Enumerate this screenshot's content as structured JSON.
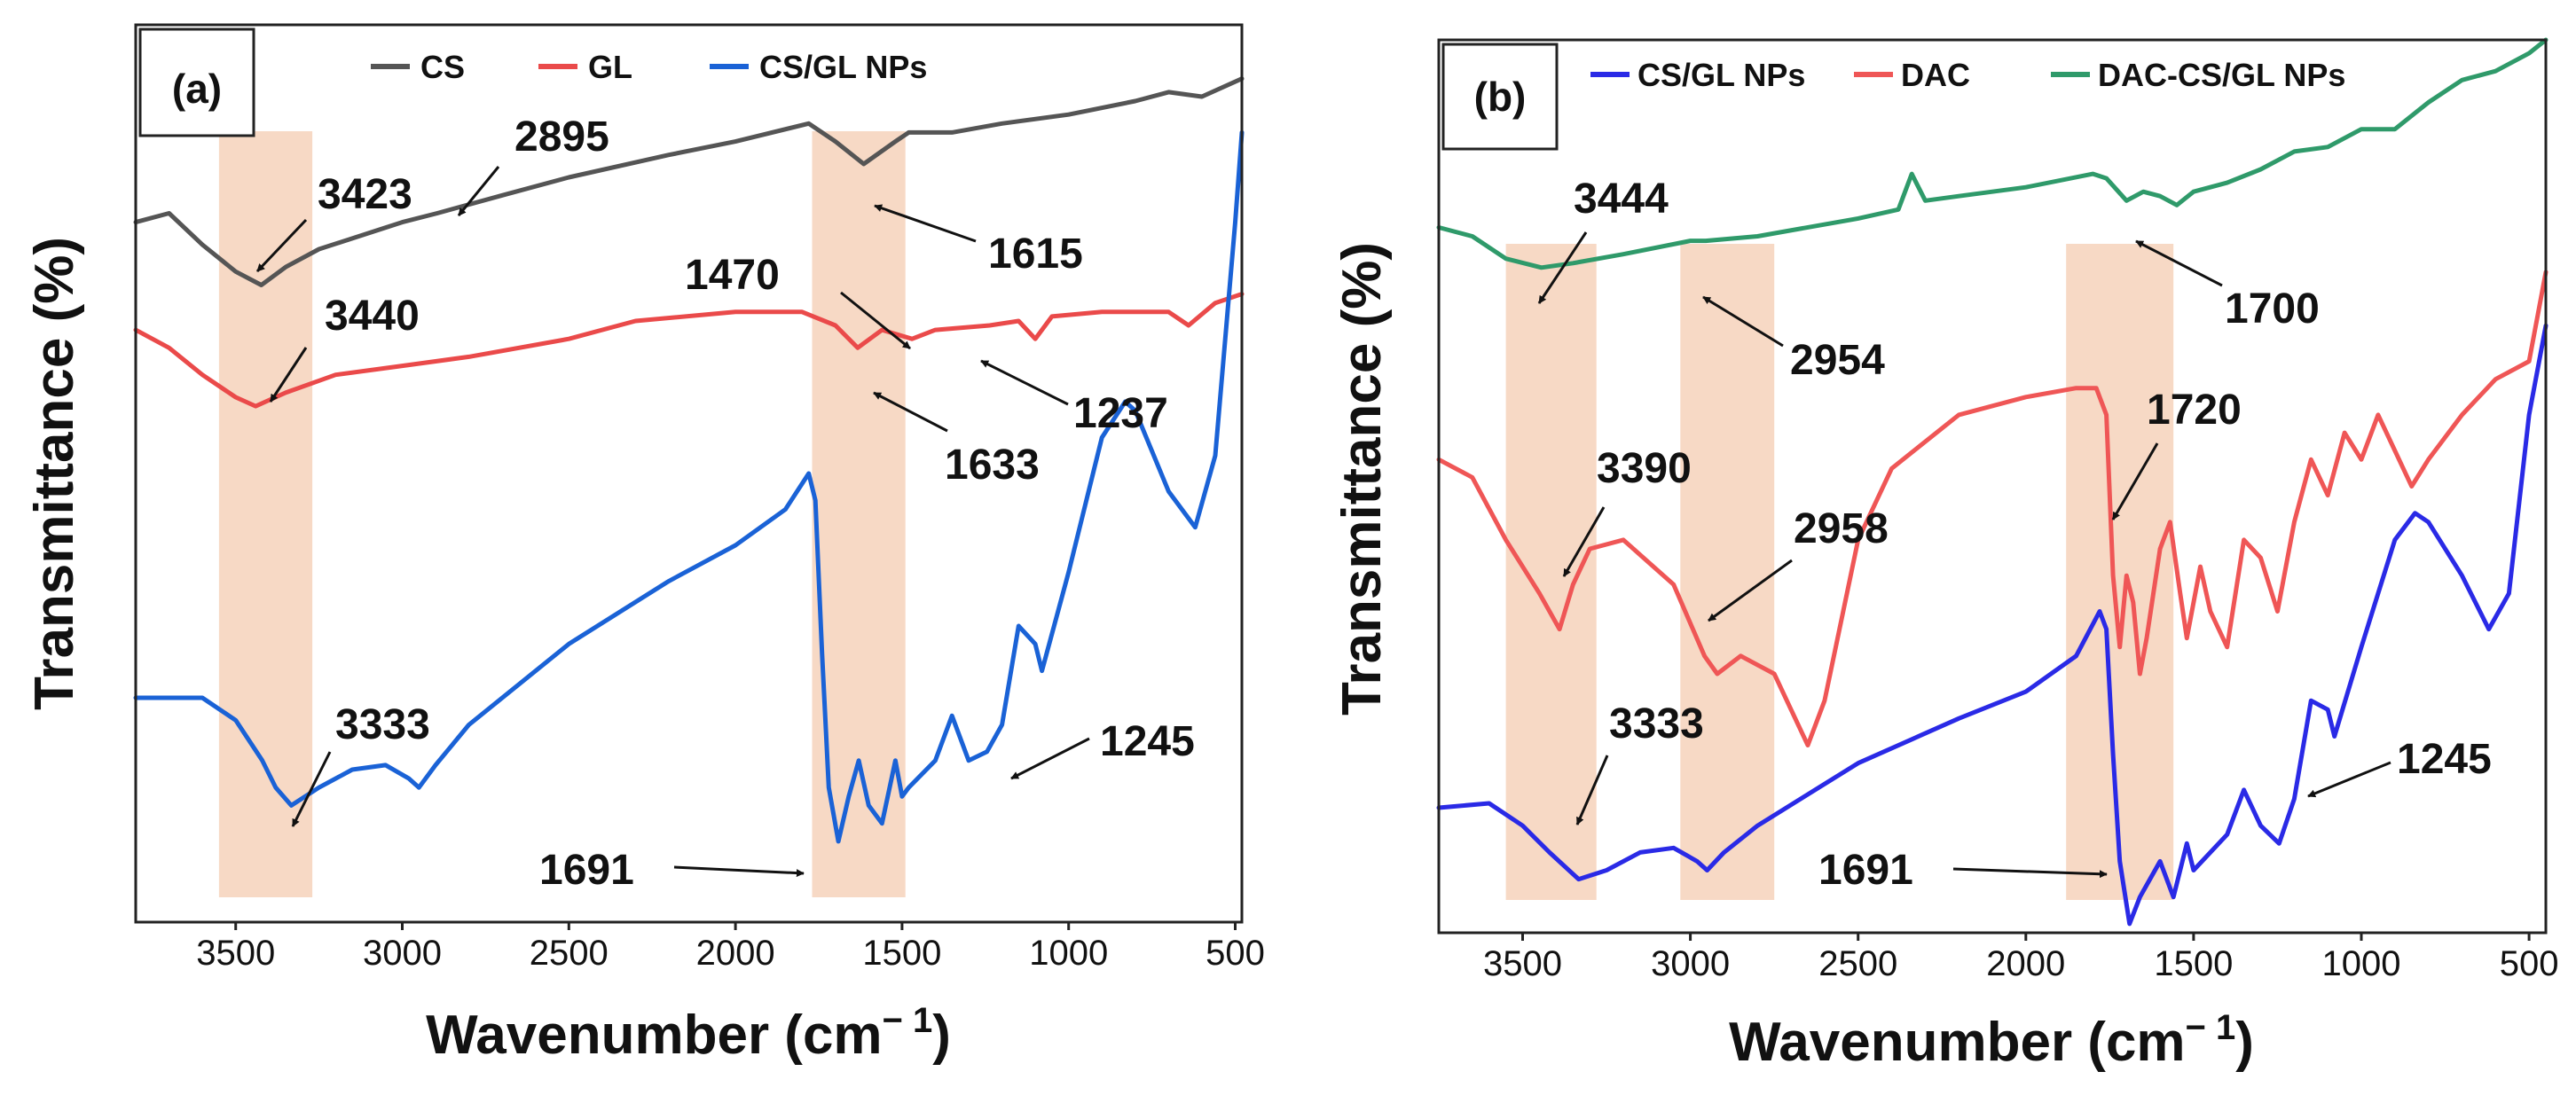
{
  "chart_data": [
    {
      "type": "line",
      "panel_label": "(a)",
      "xlabel_main": "Wavenumber (cm",
      "xlabel_sup": "− 1",
      "xlabel_close": ")",
      "ylabel": "Transmittance (%)",
      "xlim": [
        3800,
        480
      ],
      "ylim": [
        0,
        100
      ],
      "yticks_shown": false,
      "xticks": [
        3500,
        3000,
        2500,
        2000,
        1500,
        1000,
        500
      ],
      "highlight_bands": [
        [
          3550,
          3270
        ],
        [
          1770,
          1490
        ]
      ],
      "series": [
        {
          "name": "CS",
          "color": "#555555",
          "points": [
            [
              3800,
              78
            ],
            [
              3700,
              79
            ],
            [
              3600,
              75.5
            ],
            [
              3500,
              72.5
            ],
            [
              3423,
              71
            ],
            [
              3350,
              73
            ],
            [
              3250,
              75
            ],
            [
              3000,
              78
            ],
            [
              2895,
              79
            ],
            [
              2700,
              81
            ],
            [
              2500,
              83
            ],
            [
              2200,
              85.5
            ],
            [
              2000,
              87
            ],
            [
              1780,
              89
            ],
            [
              1700,
              87
            ],
            [
              1615,
              84.5
            ],
            [
              1520,
              87
            ],
            [
              1480,
              88
            ],
            [
              1350,
              88
            ],
            [
              1200,
              89
            ],
            [
              1000,
              90
            ],
            [
              800,
              91.5
            ],
            [
              700,
              92.5
            ],
            [
              600,
              92
            ],
            [
              480,
              94
            ]
          ]
        },
        {
          "name": "GL",
          "color": "#ea4a4a",
          "points": [
            [
              3800,
              66
            ],
            [
              3700,
              64
            ],
            [
              3600,
              61
            ],
            [
              3500,
              58.5
            ],
            [
              3440,
              57.5
            ],
            [
              3350,
              59
            ],
            [
              3200,
              61
            ],
            [
              3000,
              62
            ],
            [
              2800,
              63
            ],
            [
              2500,
              65
            ],
            [
              2300,
              67
            ],
            [
              2000,
              68
            ],
            [
              1800,
              68
            ],
            [
              1700,
              66.5
            ],
            [
              1633,
              64
            ],
            [
              1560,
              66
            ],
            [
              1470,
              65
            ],
            [
              1400,
              66
            ],
            [
              1237,
              66.5
            ],
            [
              1150,
              67
            ],
            [
              1100,
              65
            ],
            [
              1050,
              67.5
            ],
            [
              900,
              68
            ],
            [
              700,
              68
            ],
            [
              640,
              66.5
            ],
            [
              560,
              69
            ],
            [
              480,
              70
            ]
          ]
        },
        {
          "name": "CS/GL NPs",
          "color": "#1a62d6",
          "points": [
            [
              3800,
              25
            ],
            [
              3600,
              25
            ],
            [
              3500,
              22.5
            ],
            [
              3420,
              18
            ],
            [
              3380,
              15
            ],
            [
              3333,
              13
            ],
            [
              3250,
              15
            ],
            [
              3150,
              17
            ],
            [
              3050,
              17.5
            ],
            [
              2980,
              16
            ],
            [
              2950,
              15
            ],
            [
              2900,
              17.5
            ],
            [
              2800,
              22
            ],
            [
              2500,
              31
            ],
            [
              2200,
              38
            ],
            [
              2000,
              42
            ],
            [
              1850,
              46
            ],
            [
              1780,
              50
            ],
            [
              1760,
              47
            ],
            [
              1740,
              30
            ],
            [
              1720,
              15
            ],
            [
              1691,
              9
            ],
            [
              1660,
              14
            ],
            [
              1630,
              18
            ],
            [
              1600,
              13
            ],
            [
              1560,
              11
            ],
            [
              1520,
              18
            ],
            [
              1500,
              14
            ],
            [
              1480,
              15
            ],
            [
              1400,
              18
            ],
            [
              1350,
              23
            ],
            [
              1300,
              18
            ],
            [
              1245,
              19
            ],
            [
              1200,
              22
            ],
            [
              1150,
              33
            ],
            [
              1100,
              31
            ],
            [
              1080,
              28
            ],
            [
              1000,
              39
            ],
            [
              900,
              54
            ],
            [
              830,
              58
            ],
            [
              800,
              57
            ],
            [
              700,
              48
            ],
            [
              620,
              44
            ],
            [
              560,
              52
            ],
            [
              500,
              78
            ],
            [
              480,
              88
            ]
          ]
        }
      ],
      "annotations": [
        "2895",
        "3423",
        "3440",
        "1615",
        "1470",
        "1237",
        "1633",
        "3333",
        "1245",
        "1691"
      ]
    },
    {
      "type": "line",
      "panel_label": "(b)",
      "xlabel_main": "Wavenumber (cm",
      "xlabel_sup": "− 1",
      "xlabel_close": ")",
      "ylabel": "Transmittance (%)",
      "xlim": [
        3750,
        450
      ],
      "ylim": [
        0,
        100
      ],
      "yticks_shown": false,
      "xticks": [
        3500,
        3000,
        2500,
        2000,
        1500,
        1000,
        500
      ],
      "highlight_bands": [
        [
          3550,
          3280
        ],
        [
          3030,
          2750
        ],
        [
          1880,
          1560
        ]
      ],
      "series": [
        {
          "name": "CS/GL NPs",
          "color": "#2a2ae6",
          "points": [
            [
              3750,
              14
            ],
            [
              3600,
              14.5
            ],
            [
              3500,
              12
            ],
            [
              3420,
              9
            ],
            [
              3333,
              6
            ],
            [
              3250,
              7
            ],
            [
              3150,
              9
            ],
            [
              3050,
              9.5
            ],
            [
              2980,
              8
            ],
            [
              2950,
              7
            ],
            [
              2900,
              9
            ],
            [
              2800,
              12
            ],
            [
              2500,
              19
            ],
            [
              2200,
              24
            ],
            [
              2000,
              27
            ],
            [
              1850,
              31
            ],
            [
              1780,
              36
            ],
            [
              1760,
              34
            ],
            [
              1740,
              20
            ],
            [
              1720,
              8
            ],
            [
              1691,
              1
            ],
            [
              1660,
              4
            ],
            [
              1630,
              6
            ],
            [
              1600,
              8
            ],
            [
              1560,
              4
            ],
            [
              1520,
              10
            ],
            [
              1500,
              7
            ],
            [
              1400,
              11
            ],
            [
              1350,
              16
            ],
            [
              1300,
              12
            ],
            [
              1245,
              10
            ],
            [
              1200,
              15
            ],
            [
              1150,
              26
            ],
            [
              1100,
              25
            ],
            [
              1080,
              22
            ],
            [
              1000,
              32
            ],
            [
              900,
              44
            ],
            [
              840,
              47
            ],
            [
              800,
              46
            ],
            [
              700,
              40
            ],
            [
              620,
              34
            ],
            [
              560,
              38
            ],
            [
              500,
              58
            ],
            [
              450,
              68
            ]
          ]
        },
        {
          "name": "DAC",
          "color": "#ef5656",
          "points": [
            [
              3750,
              53
            ],
            [
              3650,
              51
            ],
            [
              3550,
              44
            ],
            [
              3450,
              38
            ],
            [
              3390,
              34
            ],
            [
              3350,
              39
            ],
            [
              3300,
              43
            ],
            [
              3200,
              44
            ],
            [
              3050,
              39
            ],
            [
              2958,
              31
            ],
            [
              2920,
              29
            ],
            [
              2850,
              31
            ],
            [
              2800,
              30
            ],
            [
              2750,
              29
            ],
            [
              2700,
              25
            ],
            [
              2650,
              21
            ],
            [
              2600,
              26
            ],
            [
              2500,
              44
            ],
            [
              2400,
              52
            ],
            [
              2200,
              58
            ],
            [
              2000,
              60
            ],
            [
              1850,
              61
            ],
            [
              1790,
              61
            ],
            [
              1760,
              58
            ],
            [
              1740,
              40
            ],
            [
              1720,
              32
            ],
            [
              1700,
              40
            ],
            [
              1680,
              37
            ],
            [
              1660,
              29
            ],
            [
              1640,
              33
            ],
            [
              1600,
              43
            ],
            [
              1570,
              46
            ],
            [
              1540,
              38
            ],
            [
              1520,
              33
            ],
            [
              1480,
              41
            ],
            [
              1450,
              36
            ],
            [
              1400,
              32
            ],
            [
              1350,
              44
            ],
            [
              1300,
              42
            ],
            [
              1250,
              36
            ],
            [
              1200,
              46
            ],
            [
              1150,
              53
            ],
            [
              1100,
              49
            ],
            [
              1050,
              56
            ],
            [
              1000,
              53
            ],
            [
              950,
              58
            ],
            [
              900,
              54
            ],
            [
              850,
              50
            ],
            [
              800,
              53
            ],
            [
              700,
              58
            ],
            [
              600,
              62
            ],
            [
              500,
              64
            ],
            [
              450,
              74
            ]
          ]
        },
        {
          "name": "DAC-CS/GL NPs",
          "color": "#2f9a6a",
          "points": [
            [
              3750,
              79
            ],
            [
              3650,
              78
            ],
            [
              3550,
              75.5
            ],
            [
              3444,
              74.5
            ],
            [
              3350,
              75
            ],
            [
              3200,
              76
            ],
            [
              3000,
              77.5
            ],
            [
              2954,
              77.5
            ],
            [
              2800,
              78
            ],
            [
              2500,
              80
            ],
            [
              2380,
              81
            ],
            [
              2340,
              85
            ],
            [
              2300,
              82
            ],
            [
              2200,
              82.5
            ],
            [
              2000,
              83.5
            ],
            [
              1800,
              85
            ],
            [
              1760,
              84.5
            ],
            [
              1700,
              82
            ],
            [
              1650,
              83
            ],
            [
              1600,
              82.5
            ],
            [
              1550,
              81.5
            ],
            [
              1500,
              83
            ],
            [
              1400,
              84
            ],
            [
              1300,
              85.5
            ],
            [
              1200,
              87.5
            ],
            [
              1100,
              88
            ],
            [
              1000,
              90
            ],
            [
              900,
              90
            ],
            [
              800,
              93
            ],
            [
              700,
              95.5
            ],
            [
              600,
              96.5
            ],
            [
              500,
              98.5
            ],
            [
              450,
              100
            ]
          ]
        }
      ],
      "annotations": [
        "3444",
        "2954",
        "1700",
        "3390",
        "2958",
        "1720",
        "3333",
        "1245",
        "1691"
      ]
    }
  ]
}
